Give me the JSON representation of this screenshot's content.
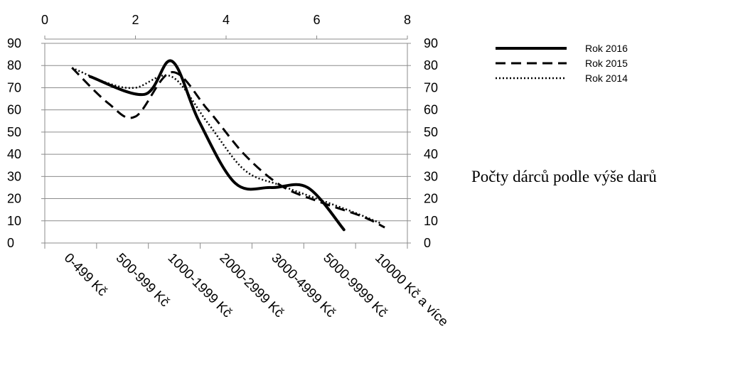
{
  "chart_data": {
    "type": "line",
    "title": "Počty dárců podle výše darů",
    "categories": [
      "0-499 Kč",
      "500-999 Kč",
      "1000-1999 Kč",
      "2000-2999 Kč",
      "3000-4999 Kč",
      "5000-9999 Kč",
      "10000 Kč a více"
    ],
    "top_axis": {
      "ticks": [
        "0",
        "2",
        "4",
        "6",
        "8"
      ],
      "range": [
        0,
        8
      ]
    },
    "y_axis": {
      "ticks": [
        "0",
        "10",
        "20",
        "30",
        "40",
        "50",
        "60",
        "70",
        "80",
        "90"
      ],
      "range": [
        0,
        90
      ]
    },
    "series": [
      {
        "name": "Rok 2016",
        "style": "solid",
        "x": [
          1,
          2.2,
          2.8,
          3.4,
          4.2,
          5.0,
          5.8,
          6.6
        ],
        "y": [
          75,
          67,
          82,
          55,
          27,
          25,
          25,
          6
        ]
      },
      {
        "name": "Rok 2015",
        "style": "dashed",
        "x": [
          0.6,
          1.4,
          2.0,
          2.8,
          3.6,
          4.4,
          5.2,
          6.0,
          7.0,
          7.5
        ],
        "y": [
          79,
          63,
          57,
          77,
          60,
          40,
          26,
          19,
          12,
          7
        ]
      },
      {
        "name": "Rok 2014",
        "style": "dotted",
        "x": [
          0.6,
          1.4,
          2.0,
          2.8,
          3.6,
          4.4,
          5.2,
          6.0,
          6.8,
          7.4
        ],
        "y": [
          79,
          72,
          70,
          75,
          54,
          33,
          26,
          20,
          14,
          9
        ]
      }
    ],
    "grid": true,
    "legend": "top-right"
  }
}
